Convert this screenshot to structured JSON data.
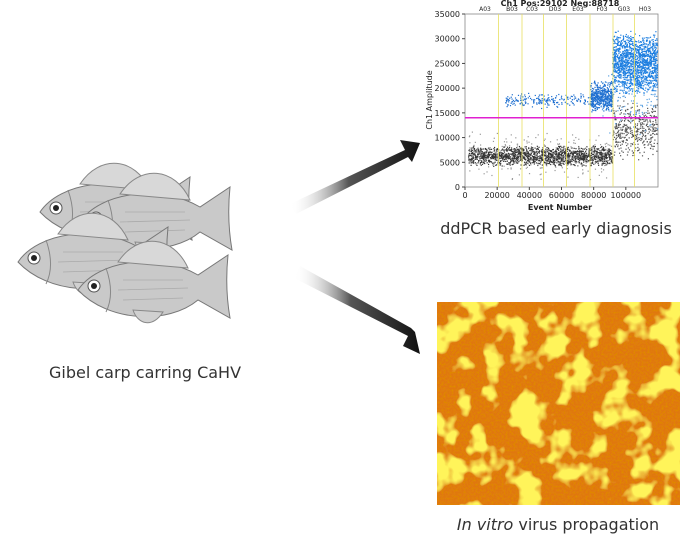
{
  "chart_data": {
    "type": "scatter",
    "title": "Ch1 Pos:29102 Neg:88718",
    "y_label": "Ch1 Amplitude",
    "x_label": "Event Number",
    "xlim": [
      0,
      120000
    ],
    "xticks": [
      0,
      20000,
      40000,
      60000,
      80000,
      100000
    ],
    "ylim": [
      0,
      35000
    ],
    "yticks": [
      0,
      5000,
      10000,
      15000,
      20000,
      25000,
      30000,
      35000
    ],
    "threshold": 14000,
    "threshold_color": "#e020d0",
    "well_labels": [
      "A03",
      "B03",
      "C03",
      "D03",
      "E03",
      "F03",
      "G03",
      "H03"
    ]
  },
  "labels": {
    "fish_caption": "Gibel carp carring CaHV",
    "ddpcr_caption": "ddPCR based early diagnosis",
    "culture_caption_italic": "In vitro",
    "culture_caption_rest": "virus propagation"
  }
}
